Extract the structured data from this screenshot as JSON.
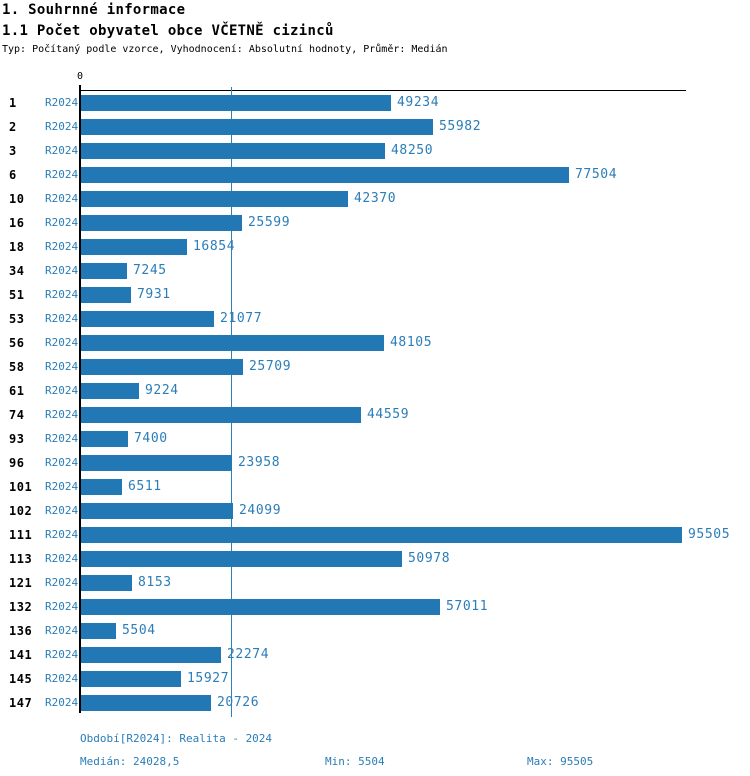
{
  "header": {
    "title1": "1. Souhrnné informace",
    "title2": "1.1 Počet obyvatel obce VČETNĚ cizinců",
    "subtitle": "Typ: Počítaný podle vzorce, Vyhodnocení: Absolutní hodnoty, Průměr: Medián"
  },
  "colors": {
    "bar": "#2278b4",
    "blue_text": "#2b7db8",
    "axis": "#000000",
    "background": "#ffffff"
  },
  "chart_data": {
    "type": "bar",
    "orientation": "horizontal",
    "title": "1.1 Počet obyvatel obce VČETNĚ cizinců",
    "xlabel": "",
    "ylabel": "",
    "origin_tick_label": "0",
    "xlim": [
      0,
      95505
    ],
    "grid": "single vertical median gridline at 24028.5",
    "legend_position": "none",
    "series_label": "R2024",
    "categories": [
      "1",
      "2",
      "3",
      "6",
      "10",
      "16",
      "18",
      "34",
      "51",
      "53",
      "56",
      "58",
      "61",
      "74",
      "93",
      "96",
      "101",
      "102",
      "111",
      "113",
      "121",
      "132",
      "136",
      "141",
      "145",
      "147"
    ],
    "values": [
      49234,
      55982,
      48250,
      77504,
      42370,
      25599,
      16854,
      7245,
      7931,
      21077,
      48105,
      25709,
      9224,
      44559,
      7400,
      23958,
      6511,
      24099,
      95505,
      50978,
      8153,
      57011,
      5504,
      22274,
      15927,
      20726
    ],
    "median": 24028.5,
    "min": 5504,
    "max": 95505
  },
  "footer": {
    "period": "Období[R2024]: Realita - 2024",
    "median": "Medián: 24028,5",
    "min": "Min: 5504",
    "max": "Max: 95505"
  }
}
